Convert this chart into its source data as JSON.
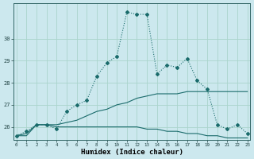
{
  "xlabel": "Humidex (Indice chaleur)",
  "background_color": "#cce8ee",
  "grid_color": "#aad4cc",
  "line_color": "#1a6b6b",
  "x_values": [
    0,
    1,
    2,
    3,
    4,
    5,
    6,
    7,
    8,
    9,
    10,
    11,
    12,
    13,
    14,
    15,
    16,
    17,
    18,
    19,
    20,
    21,
    22,
    23
  ],
  "series1": [
    25.6,
    25.8,
    26.1,
    26.1,
    25.9,
    26.7,
    27.0,
    27.2,
    28.3,
    28.9,
    29.2,
    31.2,
    31.1,
    31.1,
    28.4,
    28.8,
    28.7,
    29.1,
    28.1,
    27.7,
    26.1,
    25.9,
    26.1,
    25.7
  ],
  "series2": [
    25.6,
    25.7,
    26.1,
    26.1,
    26.1,
    26.2,
    26.3,
    26.5,
    26.7,
    26.8,
    27.0,
    27.1,
    27.3,
    27.4,
    27.5,
    27.5,
    27.5,
    27.6,
    27.6,
    27.6,
    27.6,
    27.6,
    27.6,
    27.6
  ],
  "series3": [
    25.6,
    25.6,
    26.1,
    26.1,
    26.0,
    26.0,
    26.0,
    26.0,
    26.0,
    26.0,
    26.0,
    26.0,
    26.0,
    25.9,
    25.9,
    25.8,
    25.8,
    25.7,
    25.7,
    25.6,
    25.6,
    25.5,
    25.5,
    25.5
  ],
  "ylim": [
    25.4,
    31.6
  ],
  "yticks": [
    26,
    27,
    28,
    29,
    30
  ],
  "xlim": [
    -0.3,
    23.3
  ]
}
